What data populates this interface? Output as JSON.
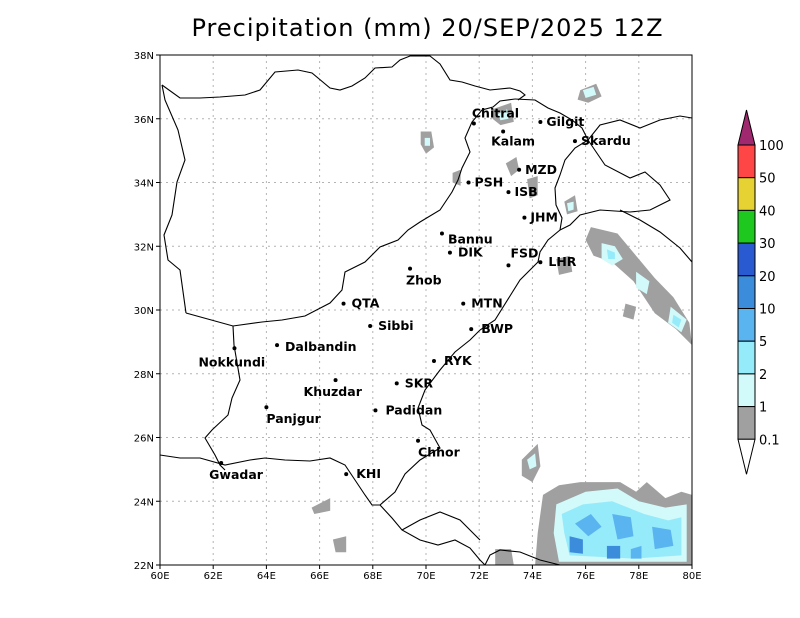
{
  "map": {
    "title": "Precipitation (mm) 20/SEP/2025 12Z",
    "lon_range": [
      60,
      80
    ],
    "lat_range": [
      22,
      38
    ],
    "x_ticks": [
      "60E",
      "62E",
      "64E",
      "66E",
      "68E",
      "70E",
      "72E",
      "74E",
      "76E",
      "78E",
      "80E"
    ],
    "y_ticks": [
      "22N",
      "24N",
      "26N",
      "28N",
      "30N",
      "32N",
      "34N",
      "36N",
      "38N"
    ],
    "grid": true,
    "cities": [
      {
        "name": "Chitral",
        "lon": 71.8,
        "lat": 35.85,
        "dx": -2,
        "dy": -6
      },
      {
        "name": "Gilgit",
        "lon": 74.3,
        "lat": 35.9,
        "dx": 6,
        "dy": 4
      },
      {
        "name": "Kalam",
        "lon": 72.9,
        "lat": 35.6,
        "dx": -12,
        "dy": 14
      },
      {
        "name": "Skardu",
        "lon": 75.6,
        "lat": 35.3,
        "dx": 6,
        "dy": 4
      },
      {
        "name": "MZD",
        "lon": 73.5,
        "lat": 34.4,
        "dx": 6,
        "dy": 4
      },
      {
        "name": "PSH",
        "lon": 71.6,
        "lat": 34.0,
        "dx": 6,
        "dy": 4
      },
      {
        "name": "ISB",
        "lon": 73.1,
        "lat": 33.7,
        "dx": 6,
        "dy": 4
      },
      {
        "name": "JHM",
        "lon": 73.7,
        "lat": 32.9,
        "dx": 6,
        "dy": 4
      },
      {
        "name": "Bannu",
        "lon": 70.6,
        "lat": 32.4,
        "dx": 6,
        "dy": 10
      },
      {
        "name": "DIK",
        "lon": 70.9,
        "lat": 31.8,
        "dx": 8,
        "dy": 4
      },
      {
        "name": "FSD",
        "lon": 73.1,
        "lat": 31.4,
        "dx": 2,
        "dy": -8
      },
      {
        "name": "LHR",
        "lon": 74.3,
        "lat": 31.5,
        "dx": 8,
        "dy": 4
      },
      {
        "name": "Zhob",
        "lon": 69.4,
        "lat": 31.3,
        "dx": -4,
        "dy": 16
      },
      {
        "name": "QTA",
        "lon": 66.9,
        "lat": 30.2,
        "dx": 8,
        "dy": 4
      },
      {
        "name": "MTN",
        "lon": 71.4,
        "lat": 30.2,
        "dx": 8,
        "dy": 4
      },
      {
        "name": "Sibbi",
        "lon": 67.9,
        "lat": 29.5,
        "dx": 8,
        "dy": 4
      },
      {
        "name": "BWP",
        "lon": 71.7,
        "lat": 29.4,
        "dx": 10,
        "dy": 4
      },
      {
        "name": "Nokkundi",
        "lon": 62.8,
        "lat": 28.8,
        "dx": -36,
        "dy": 18
      },
      {
        "name": "Dalbandin",
        "lon": 64.4,
        "lat": 28.9,
        "dx": 8,
        "dy": 6
      },
      {
        "name": "RYK",
        "lon": 70.3,
        "lat": 28.4,
        "dx": 10,
        "dy": 4
      },
      {
        "name": "Khuzdar",
        "lon": 66.6,
        "lat": 27.8,
        "dx": -32,
        "dy": 16
      },
      {
        "name": "SKR",
        "lon": 68.9,
        "lat": 27.7,
        "dx": 8,
        "dy": 4
      },
      {
        "name": "Panjgur",
        "lon": 64.0,
        "lat": 26.95,
        "dx": 0,
        "dy": 16
      },
      {
        "name": "Padidan",
        "lon": 68.1,
        "lat": 26.85,
        "dx": 10,
        "dy": 4
      },
      {
        "name": "Chhor",
        "lon": 69.7,
        "lat": 25.9,
        "dx": 0,
        "dy": 16
      },
      {
        "name": "KHI",
        "lon": 67.0,
        "lat": 24.85,
        "dx": 10,
        "dy": 4
      },
      {
        "name": "Gwadar",
        "lon": 62.3,
        "lat": 25.2,
        "dx": -12,
        "dy": 16
      }
    ]
  },
  "colorbar": {
    "levels": [
      "0.1",
      "1",
      "2",
      "5",
      "10",
      "20",
      "30",
      "40",
      "50",
      "100"
    ],
    "colors": [
      "#a0a0a0",
      "#d2fafa",
      "#96ebfa",
      "#5ab4f0",
      "#3c8cdc",
      "#2a5ad2",
      "#1ec81e",
      "#e6d232",
      "#ff4646",
      "#a0286e"
    ]
  },
  "precip_areas": [
    {
      "level": 0,
      "pts": [
        [
          75.8,
          36.9
        ],
        [
          76.4,
          37.1
        ],
        [
          76.6,
          36.7
        ],
        [
          76.1,
          36.5
        ],
        [
          75.7,
          36.6
        ]
      ]
    },
    {
      "level": 1,
      "pts": [
        [
          75.9,
          36.9
        ],
        [
          76.3,
          37.0
        ],
        [
          76.4,
          36.75
        ],
        [
          76.0,
          36.65
        ]
      ]
    },
    {
      "level": 0,
      "pts": [
        [
          69.8,
          35.6
        ],
        [
          70.2,
          35.6
        ],
        [
          70.3,
          35.1
        ],
        [
          70.0,
          34.9
        ],
        [
          69.8,
          35.2
        ]
      ]
    },
    {
      "level": 1,
      "pts": [
        [
          69.95,
          35.4
        ],
        [
          70.15,
          35.4
        ],
        [
          70.15,
          35.15
        ],
        [
          69.95,
          35.15
        ]
      ]
    },
    {
      "level": 0,
      "pts": [
        [
          71.0,
          34.3
        ],
        [
          71.3,
          34.4
        ],
        [
          71.3,
          33.9
        ],
        [
          71.0,
          34.0
        ]
      ]
    },
    {
      "level": 0,
      "pts": [
        [
          72.5,
          36.3
        ],
        [
          73.2,
          36.5
        ],
        [
          73.3,
          35.9
        ],
        [
          72.8,
          35.8
        ],
        [
          72.5,
          36.0
        ]
      ]
    },
    {
      "level": 1,
      "pts": [
        [
          72.7,
          36.15
        ],
        [
          73.05,
          36.3
        ],
        [
          73.1,
          36.0
        ],
        [
          72.8,
          35.95
        ]
      ]
    },
    {
      "level": 0,
      "pts": [
        [
          73.0,
          34.6
        ],
        [
          73.4,
          34.8
        ],
        [
          73.5,
          34.4
        ],
        [
          73.2,
          34.2
        ]
      ]
    },
    {
      "level": 0,
      "pts": [
        [
          73.8,
          34.1
        ],
        [
          74.2,
          34.2
        ],
        [
          74.2,
          33.6
        ],
        [
          73.9,
          33.5
        ]
      ]
    },
    {
      "level": 0,
      "pts": [
        [
          75.2,
          33.4
        ],
        [
          75.6,
          33.6
        ],
        [
          75.7,
          33.1
        ],
        [
          75.3,
          33.0
        ]
      ]
    },
    {
      "level": 1,
      "pts": [
        [
          75.3,
          33.35
        ],
        [
          75.55,
          33.4
        ],
        [
          75.55,
          33.15
        ],
        [
          75.35,
          33.1
        ]
      ]
    },
    {
      "level": 0,
      "pts": [
        [
          76.2,
          32.6
        ],
        [
          77.2,
          32.4
        ],
        [
          78.0,
          31.6
        ],
        [
          78.6,
          31.0
        ],
        [
          79.3,
          30.4
        ],
        [
          79.9,
          29.6
        ],
        [
          80.0,
          28.9
        ],
        [
          79.4,
          29.4
        ],
        [
          78.6,
          29.9
        ],
        [
          77.8,
          30.9
        ],
        [
          77.0,
          31.5
        ],
        [
          76.3,
          31.7
        ],
        [
          76.0,
          32.2
        ]
      ]
    },
    {
      "level": 1,
      "pts": [
        [
          76.6,
          32.1
        ],
        [
          77.1,
          32.0
        ],
        [
          77.4,
          31.6
        ],
        [
          77.0,
          31.4
        ],
        [
          76.6,
          31.6
        ]
      ]
    },
    {
      "level": 2,
      "pts": [
        [
          76.8,
          31.9
        ],
        [
          77.1,
          31.8
        ],
        [
          77.1,
          31.6
        ],
        [
          76.85,
          31.6
        ]
      ]
    },
    {
      "level": 1,
      "pts": [
        [
          77.9,
          31.2
        ],
        [
          78.4,
          30.9
        ],
        [
          78.3,
          30.5
        ],
        [
          77.9,
          30.7
        ]
      ]
    },
    {
      "level": 1,
      "pts": [
        [
          79.2,
          30.1
        ],
        [
          79.8,
          29.7
        ],
        [
          79.6,
          29.3
        ],
        [
          79.1,
          29.6
        ]
      ]
    },
    {
      "level": 2,
      "pts": [
        [
          79.3,
          29.85
        ],
        [
          79.6,
          29.7
        ],
        [
          79.5,
          29.45
        ],
        [
          79.25,
          29.6
        ]
      ]
    },
    {
      "level": 0,
      "pts": [
        [
          74.9,
          31.6
        ],
        [
          75.4,
          31.7
        ],
        [
          75.5,
          31.2
        ],
        [
          75.0,
          31.1
        ]
      ]
    },
    {
      "level": 0,
      "pts": [
        [
          77.5,
          30.2
        ],
        [
          77.9,
          30.1
        ],
        [
          77.8,
          29.7
        ],
        [
          77.4,
          29.8
        ]
      ]
    },
    {
      "level": 0,
      "pts": [
        [
          73.6,
          25.3
        ],
        [
          74.2,
          25.8
        ],
        [
          74.3,
          25.1
        ],
        [
          74.0,
          24.6
        ],
        [
          73.6,
          24.8
        ]
      ]
    },
    {
      "level": 1,
      "pts": [
        [
          73.8,
          25.3
        ],
        [
          74.1,
          25.5
        ],
        [
          74.15,
          25.1
        ],
        [
          73.9,
          25.0
        ]
      ]
    },
    {
      "level": 0,
      "pts": [
        [
          65.7,
          23.8
        ],
        [
          66.4,
          24.1
        ],
        [
          66.4,
          23.7
        ],
        [
          65.8,
          23.6
        ]
      ]
    },
    {
      "level": 0,
      "pts": [
        [
          66.5,
          22.8
        ],
        [
          67.0,
          22.9
        ],
        [
          67.0,
          22.4
        ],
        [
          66.6,
          22.4
        ]
      ]
    },
    {
      "level": 0,
      "pts": [
        [
          72.6,
          22.5
        ],
        [
          73.2,
          22.5
        ],
        [
          73.3,
          22.0
        ],
        [
          72.6,
          22.0
        ]
      ]
    },
    {
      "level": 0,
      "pts": [
        [
          74.4,
          24.2
        ],
        [
          75.0,
          24.5
        ],
        [
          75.8,
          24.6
        ],
        [
          76.5,
          24.6
        ],
        [
          77.3,
          24.6
        ],
        [
          77.9,
          24.3
        ],
        [
          78.3,
          24.6
        ],
        [
          79.0,
          24.1
        ],
        [
          79.6,
          24.3
        ],
        [
          80.0,
          24.2
        ],
        [
          80.0,
          22.0
        ],
        [
          74.1,
          22.0
        ],
        [
          74.2,
          23.0
        ]
      ]
    },
    {
      "level": 1,
      "pts": [
        [
          74.9,
          23.9
        ],
        [
          76.0,
          24.3
        ],
        [
          77.2,
          24.4
        ],
        [
          78.0,
          24.0
        ],
        [
          79.0,
          23.8
        ],
        [
          79.8,
          23.9
        ],
        [
          79.8,
          22.1
        ],
        [
          75.0,
          22.1
        ],
        [
          74.8,
          23.0
        ]
      ]
    },
    {
      "level": 2,
      "pts": [
        [
          75.1,
          23.6
        ],
        [
          75.9,
          23.9
        ],
        [
          77.0,
          24.0
        ],
        [
          78.2,
          23.6
        ],
        [
          79.1,
          23.4
        ],
        [
          79.6,
          23.5
        ],
        [
          79.6,
          22.3
        ],
        [
          77.8,
          22.2
        ],
        [
          75.4,
          22.3
        ],
        [
          75.2,
          23.0
        ]
      ]
    },
    {
      "level": 3,
      "pts": [
        [
          75.6,
          23.3
        ],
        [
          76.2,
          23.6
        ],
        [
          76.6,
          23.2
        ],
        [
          76.1,
          22.9
        ]
      ]
    },
    {
      "level": 3,
      "pts": [
        [
          77.0,
          23.6
        ],
        [
          77.7,
          23.5
        ],
        [
          77.8,
          22.9
        ],
        [
          77.2,
          22.8
        ]
      ]
    },
    {
      "level": 3,
      "pts": [
        [
          78.5,
          23.2
        ],
        [
          79.2,
          23.1
        ],
        [
          79.3,
          22.6
        ],
        [
          78.6,
          22.5
        ]
      ]
    },
    {
      "level": 4,
      "pts": [
        [
          75.4,
          22.9
        ],
        [
          75.9,
          22.8
        ],
        [
          75.9,
          22.35
        ],
        [
          75.4,
          22.4
        ]
      ]
    },
    {
      "level": 4,
      "pts": [
        [
          76.8,
          22.6
        ],
        [
          77.3,
          22.6
        ],
        [
          77.3,
          22.2
        ],
        [
          76.8,
          22.2
        ]
      ]
    },
    {
      "level": 3,
      "pts": [
        [
          77.7,
          22.5
        ],
        [
          78.1,
          22.6
        ],
        [
          78.1,
          22.2
        ],
        [
          77.7,
          22.2
        ]
      ]
    }
  ]
}
